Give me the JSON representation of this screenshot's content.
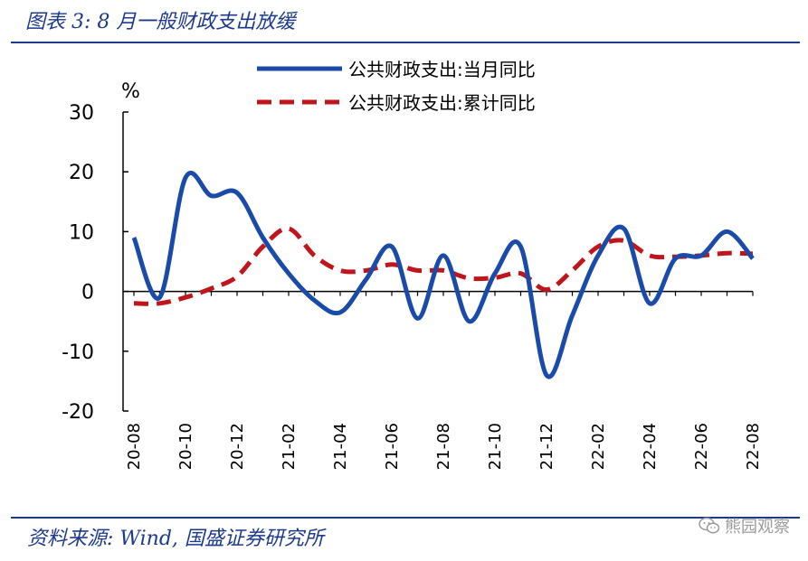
{
  "header": {
    "title": "图表 3:  8 月一般财政支出放缓"
  },
  "footer": {
    "source": "资料来源:  Wind, 国盛证券研究所",
    "watermark": "熊园观察",
    "watermark_icon": "wechat-icon"
  },
  "colors": {
    "brand_blue": "#1c3a8c",
    "series_blue": "#1b4ba8",
    "series_red": "#c0161b"
  },
  "chart_data": {
    "type": "line",
    "ylabel": "%",
    "ylim": [
      -20,
      30
    ],
    "yticks": [
      30,
      20,
      10,
      0,
      -10,
      -20
    ],
    "x": [
      "20-08",
      "20-09",
      "20-10",
      "20-11",
      "20-12",
      "21-01",
      "21-02",
      "21-03",
      "21-04",
      "21-05",
      "21-06",
      "21-07",
      "21-08",
      "21-09",
      "21-10",
      "21-11",
      "21-12",
      "22-01",
      "22-02",
      "22-03",
      "22-04",
      "22-05",
      "22-06",
      "22-07",
      "22-08"
    ],
    "xtick_labels": [
      "20-08",
      "20-10",
      "20-12",
      "21-02",
      "21-04",
      "21-06",
      "21-08",
      "21-10",
      "21-12",
      "22-02",
      "22-04",
      "22-06",
      "22-08"
    ],
    "series": [
      {
        "name": "公共财政支出:当月同比",
        "style": "solid",
        "values": [
          9.0,
          -1.0,
          19.0,
          16.0,
          16.5,
          9.0,
          3.0,
          -1.5,
          -3.5,
          2.0,
          7.5,
          -4.5,
          6.0,
          -5.0,
          3.0,
          7.5,
          -14.0,
          -4.0,
          6.0,
          10.5,
          -2.0,
          5.5,
          6.0,
          10.0,
          5.5
        ]
      },
      {
        "name": "公共财政支出:累计同比",
        "style": "dashed",
        "values": [
          -2.0,
          -2.0,
          -1.0,
          0.5,
          2.5,
          7.5,
          10.5,
          6.0,
          3.5,
          3.5,
          4.5,
          3.5,
          3.5,
          2.2,
          2.3,
          3.0,
          0.3,
          3.5,
          7.5,
          8.5,
          6.0,
          5.8,
          6.0,
          6.4,
          6.3
        ]
      }
    ]
  }
}
